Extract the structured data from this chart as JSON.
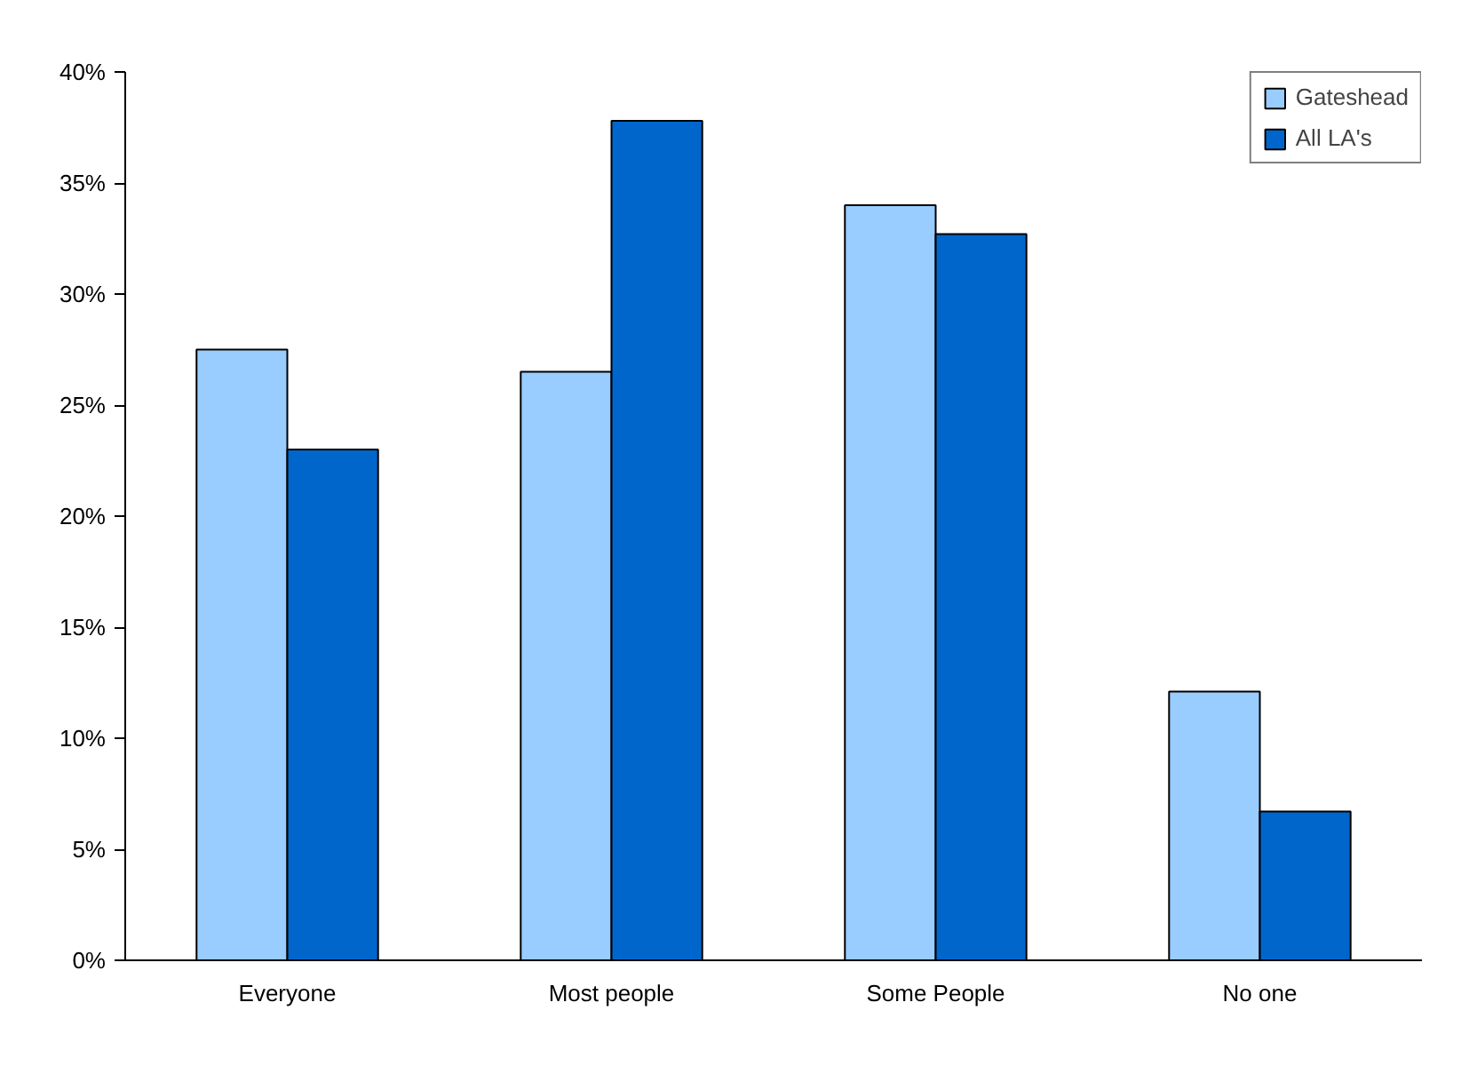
{
  "chart_data": {
    "type": "bar",
    "categories": [
      "Everyone",
      "Most people",
      "Some People",
      "No one"
    ],
    "series": [
      {
        "name": "Gateshead",
        "color": "#99ccff",
        "values": [
          27.5,
          26.5,
          34.0,
          12.1
        ]
      },
      {
        "name": "All LA's",
        "color": "#0066cc",
        "values": [
          23.0,
          37.8,
          32.7,
          6.7
        ]
      }
    ],
    "ylim": [
      0,
      40
    ],
    "yticks": [
      {
        "value": 0,
        "label": "0%"
      },
      {
        "value": 5,
        "label": "5%"
      },
      {
        "value": 10,
        "label": "10%"
      },
      {
        "value": 15,
        "label": "15%"
      },
      {
        "value": 20,
        "label": "20%"
      },
      {
        "value": 25,
        "label": "25%"
      },
      {
        "value": 30,
        "label": "30%"
      },
      {
        "value": 35,
        "label": "35%"
      },
      {
        "value": 40,
        "label": "40%"
      }
    ],
    "grid": false,
    "legend": "top right"
  }
}
